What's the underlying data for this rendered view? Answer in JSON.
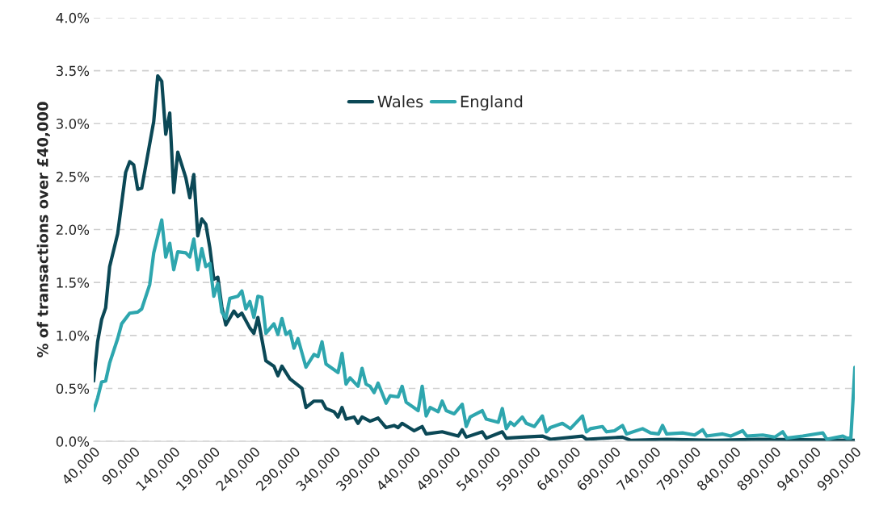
{
  "chart_data": {
    "type": "line",
    "ylabel": "% of transactions over £40,000",
    "xlim": [
      40000,
      990000
    ],
    "xticks": [
      {
        "value": 40000,
        "label": "40,000"
      },
      {
        "value": 90000,
        "label": "90,000"
      },
      {
        "value": 140000,
        "label": "140,000"
      },
      {
        "value": 190000,
        "label": "190,000"
      },
      {
        "value": 240000,
        "label": "240,000"
      },
      {
        "value": 290000,
        "label": "290,000"
      },
      {
        "value": 340000,
        "label": "340,000"
      },
      {
        "value": 390000,
        "label": "390,000"
      },
      {
        "value": 440000,
        "label": "440,000"
      },
      {
        "value": 490000,
        "label": "490,000"
      },
      {
        "value": 540000,
        "label": "540,000"
      },
      {
        "value": 590000,
        "label": "590,000"
      },
      {
        "value": 640000,
        "label": "640,000"
      },
      {
        "value": 690000,
        "label": "690,000"
      },
      {
        "value": 740000,
        "label": "740,000"
      },
      {
        "value": 790000,
        "label": "790,000"
      },
      {
        "value": 840000,
        "label": "840,000"
      },
      {
        "value": 890000,
        "label": "890,000"
      },
      {
        "value": 940000,
        "label": "940,000"
      },
      {
        "value": 990000,
        "label": "990,000"
      }
    ],
    "ylim": [
      0,
      4.0
    ],
    "yticks": [
      {
        "value": 0,
        "label": "0.0%"
      },
      {
        "value": 0.5,
        "label": "0.5%"
      },
      {
        "value": 1.0,
        "label": "1.0%"
      },
      {
        "value": 1.5,
        "label": "1.5%"
      },
      {
        "value": 2.0,
        "label": "2.0%"
      },
      {
        "value": 2.5,
        "label": "2.5%"
      },
      {
        "value": 3.0,
        "label": "3.0%"
      },
      {
        "value": 3.5,
        "label": "3.5%"
      },
      {
        "value": 4.0,
        "label": "4.0%"
      }
    ],
    "grid": "y",
    "legend": "top",
    "marker": "none",
    "line_style": "solid",
    "series": [
      {
        "name": "Wales",
        "color": "#0b4856",
        "x": [
          40000,
          45000,
          50000,
          55000,
          60000,
          70000,
          80000,
          85000,
          90000,
          95000,
          100000,
          115000,
          120000,
          125000,
          130000,
          135000,
          140000,
          145000,
          155000,
          160000,
          165000,
          170000,
          175000,
          180000,
          185000,
          190000,
          195000,
          200000,
          205000,
          215000,
          220000,
          225000,
          235000,
          240000,
          245000,
          255000,
          265000,
          270000,
          275000,
          285000,
          300000,
          305000,
          315000,
          325000,
          330000,
          340000,
          345000,
          350000,
          355000,
          365000,
          370000,
          375000,
          385000,
          395000,
          405000,
          415000,
          420000,
          425000,
          440000,
          445000,
          450000,
          455000,
          475000,
          495000,
          500000,
          505000,
          525000,
          530000,
          550000,
          555000,
          575000,
          600000,
          610000,
          650000,
          655000,
          700000,
          710000,
          755000,
          815000,
          870000,
          990000
        ],
        "values": [
          0.57,
          0.94,
          1.15,
          1.26,
          1.65,
          1.96,
          2.54,
          2.64,
          2.61,
          2.38,
          2.39,
          3.02,
          3.45,
          3.4,
          2.9,
          3.1,
          2.35,
          2.73,
          2.49,
          2.3,
          2.52,
          1.94,
          2.1,
          2.05,
          1.83,
          1.53,
          1.55,
          1.27,
          1.1,
          1.23,
          1.18,
          1.21,
          1.07,
          1.02,
          1.17,
          0.76,
          0.71,
          0.62,
          0.71,
          0.59,
          0.5,
          0.32,
          0.38,
          0.38,
          0.31,
          0.28,
          0.23,
          0.32,
          0.21,
          0.23,
          0.17,
          0.23,
          0.19,
          0.22,
          0.13,
          0.15,
          0.13,
          0.17,
          0.1,
          0.12,
          0.14,
          0.07,
          0.09,
          0.05,
          0.11,
          0.04,
          0.09,
          0.03,
          0.09,
          0.03,
          0.04,
          0.05,
          0.02,
          0.05,
          0.02,
          0.04,
          0.01,
          0.02,
          0.01,
          0.02,
          0.01
        ]
      },
      {
        "name": "England",
        "color": "#2ea6ae",
        "x": [
          40000,
          45000,
          50000,
          55000,
          60000,
          70000,
          75000,
          85000,
          95000,
          100000,
          110000,
          115000,
          125000,
          130000,
          135000,
          140000,
          145000,
          155000,
          160000,
          165000,
          170000,
          175000,
          180000,
          185000,
          190000,
          195000,
          200000,
          205000,
          210000,
          220000,
          225000,
          230000,
          235000,
          240000,
          245000,
          250000,
          255000,
          265000,
          270000,
          275000,
          280000,
          285000,
          290000,
          295000,
          305000,
          315000,
          320000,
          325000,
          330000,
          345000,
          350000,
          355000,
          360000,
          370000,
          375000,
          380000,
          385000,
          390000,
          395000,
          405000,
          410000,
          420000,
          425000,
          430000,
          445000,
          450000,
          455000,
          460000,
          470000,
          475000,
          480000,
          490000,
          500000,
          505000,
          510000,
          525000,
          530000,
          545000,
          550000,
          555000,
          560000,
          565000,
          575000,
          580000,
          590000,
          600000,
          605000,
          610000,
          625000,
          635000,
          650000,
          655000,
          660000,
          675000,
          680000,
          690000,
          700000,
          705000,
          725000,
          735000,
          745000,
          750000,
          755000,
          775000,
          790000,
          800000,
          805000,
          825000,
          835000,
          850000,
          855000,
          875000,
          890000,
          900000,
          905000,
          925000,
          950000,
          955000,
          975000,
          980000,
          985000,
          990000
        ],
        "values": [
          0.29,
          0.41,
          0.56,
          0.57,
          0.74,
          0.97,
          1.11,
          1.21,
          1.22,
          1.25,
          1.48,
          1.78,
          2.09,
          1.74,
          1.87,
          1.62,
          1.79,
          1.78,
          1.74,
          1.91,
          1.62,
          1.82,
          1.65,
          1.68,
          1.37,
          1.49,
          1.22,
          1.16,
          1.35,
          1.37,
          1.42,
          1.25,
          1.32,
          1.17,
          1.37,
          1.36,
          1.02,
          1.11,
          1.01,
          1.16,
          1.01,
          1.04,
          0.88,
          0.97,
          0.7,
          0.82,
          0.8,
          0.94,
          0.73,
          0.65,
          0.83,
          0.54,
          0.6,
          0.52,
          0.69,
          0.54,
          0.52,
          0.46,
          0.55,
          0.36,
          0.43,
          0.42,
          0.52,
          0.37,
          0.29,
          0.52,
          0.24,
          0.32,
          0.28,
          0.38,
          0.29,
          0.26,
          0.35,
          0.14,
          0.23,
          0.29,
          0.21,
          0.18,
          0.31,
          0.12,
          0.18,
          0.15,
          0.23,
          0.17,
          0.14,
          0.24,
          0.09,
          0.13,
          0.17,
          0.12,
          0.24,
          0.09,
          0.12,
          0.14,
          0.09,
          0.1,
          0.15,
          0.07,
          0.12,
          0.08,
          0.07,
          0.15,
          0.07,
          0.08,
          0.06,
          0.11,
          0.05,
          0.07,
          0.05,
          0.1,
          0.05,
          0.06,
          0.04,
          0.09,
          0.03,
          0.05,
          0.08,
          0.02,
          0.05,
          0.03,
          0.03,
          0.7
        ]
      }
    ]
  }
}
